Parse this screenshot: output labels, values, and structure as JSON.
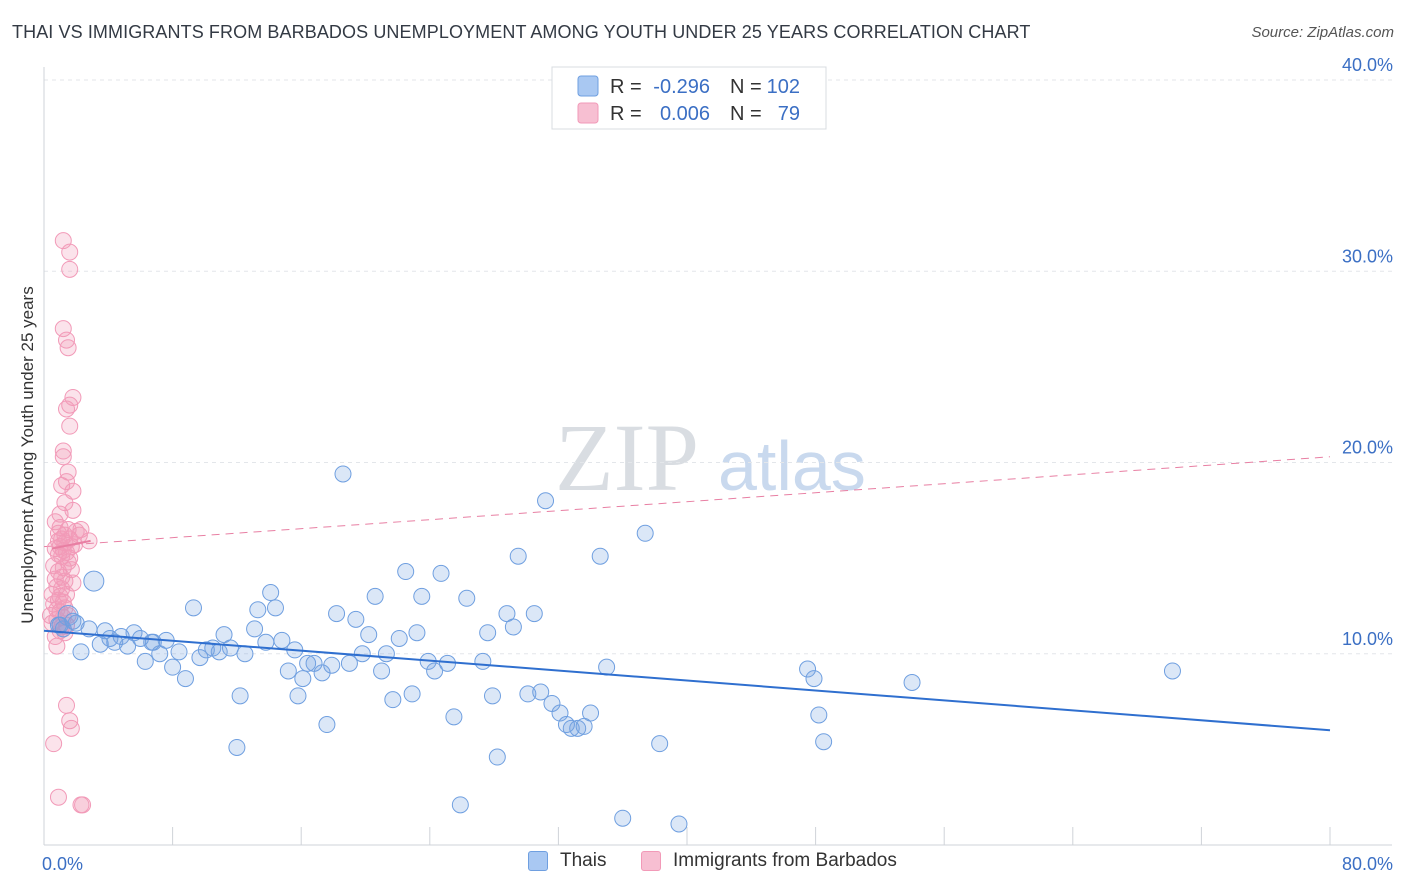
{
  "chart_data": {
    "type": "scatter",
    "title": "THAI VS IMMIGRANTS FROM BARBADOS UNEMPLOYMENT AMONG YOUTH UNDER 25 YEARS CORRELATION CHART",
    "source": "Source: ZipAtlas.com",
    "ylabel": "Unemployment Among Youth under 25 years",
    "xlabel": "",
    "xlim": [
      0,
      80
    ],
    "ylim": [
      0,
      40
    ],
    "x_tick_labels": [
      "0.0%",
      "80.0%"
    ],
    "y_ticks": [
      10,
      20,
      30,
      40
    ],
    "y_tick_labels": [
      "10.0%",
      "20.0%",
      "30.0%",
      "40.0%"
    ],
    "grid": true,
    "watermark": {
      "zip": "ZIP",
      "atlas": "atlas"
    },
    "legend_position": "top-center",
    "legend_r_label": "R =",
    "legend_n_label": "N =",
    "colors": {
      "thais": "#6f9fe0",
      "barbados": "#f29ab8",
      "thais_line": "#2f6fcf",
      "barbados_line": "#e87fa3"
    },
    "series": [
      {
        "name": "Thais",
        "r": "-0.296",
        "n": "102",
        "trend": {
          "x": [
            0,
            80
          ],
          "y": [
            11.2,
            6.0
          ],
          "style": "solid"
        },
        "points": [
          [
            0.9,
            11.5
          ],
          [
            1.2,
            11.3
          ],
          [
            1.5,
            12.0
          ],
          [
            1.8,
            11.7
          ],
          [
            2.3,
            10.1
          ],
          [
            2.8,
            11.3
          ],
          [
            3.1,
            13.8
          ],
          [
            3.5,
            10.5
          ],
          [
            3.8,
            11.2
          ],
          [
            4.1,
            10.8
          ],
          [
            4.4,
            10.6
          ],
          [
            4.8,
            10.9
          ],
          [
            5.2,
            10.4
          ],
          [
            5.6,
            11.1
          ],
          [
            6.0,
            10.8
          ],
          [
            6.3,
            9.6
          ],
          [
            6.7,
            10.6
          ],
          [
            7.2,
            10.0
          ],
          [
            7.6,
            10.7
          ],
          [
            8.0,
            9.3
          ],
          [
            8.4,
            10.1
          ],
          [
            8.8,
            8.7
          ],
          [
            9.3,
            12.4
          ],
          [
            9.7,
            9.8
          ],
          [
            10.1,
            10.2
          ],
          [
            10.5,
            10.3
          ],
          [
            10.9,
            10.1
          ],
          [
            11.2,
            11.0
          ],
          [
            11.6,
            10.3
          ],
          [
            12.0,
            5.1
          ],
          [
            12.2,
            7.8
          ],
          [
            12.5,
            10.0
          ],
          [
            13.1,
            11.3
          ],
          [
            13.3,
            12.3
          ],
          [
            13.8,
            10.6
          ],
          [
            14.1,
            13.2
          ],
          [
            14.4,
            12.4
          ],
          [
            14.8,
            10.7
          ],
          [
            15.2,
            9.1
          ],
          [
            15.6,
            10.2
          ],
          [
            15.8,
            7.8
          ],
          [
            16.1,
            8.7
          ],
          [
            16.4,
            9.5
          ],
          [
            16.8,
            9.5
          ],
          [
            17.3,
            9.0
          ],
          [
            17.6,
            6.3
          ],
          [
            17.9,
            9.4
          ],
          [
            18.2,
            12.1
          ],
          [
            18.6,
            19.4
          ],
          [
            19.0,
            9.5
          ],
          [
            19.4,
            11.8
          ],
          [
            19.8,
            10.0
          ],
          [
            20.2,
            11.0
          ],
          [
            20.6,
            13.0
          ],
          [
            21.0,
            9.1
          ],
          [
            21.3,
            10.0
          ],
          [
            21.7,
            7.6
          ],
          [
            22.1,
            10.8
          ],
          [
            22.5,
            14.3
          ],
          [
            22.9,
            7.9
          ],
          [
            23.2,
            11.1
          ],
          [
            23.5,
            13.0
          ],
          [
            23.9,
            9.6
          ],
          [
            24.3,
            9.1
          ],
          [
            24.7,
            14.2
          ],
          [
            25.1,
            9.5
          ],
          [
            25.5,
            6.7
          ],
          [
            25.9,
            2.1
          ],
          [
            26.3,
            12.9
          ],
          [
            27.3,
            9.6
          ],
          [
            27.6,
            11.1
          ],
          [
            27.9,
            7.8
          ],
          [
            28.2,
            4.6
          ],
          [
            28.8,
            12.1
          ],
          [
            29.2,
            11.4
          ],
          [
            29.5,
            15.1
          ],
          [
            30.1,
            7.9
          ],
          [
            30.5,
            12.1
          ],
          [
            30.9,
            8.0
          ],
          [
            31.2,
            18.0
          ],
          [
            31.6,
            7.4
          ],
          [
            32.1,
            6.9
          ],
          [
            32.5,
            6.3
          ],
          [
            32.8,
            6.1
          ],
          [
            33.2,
            6.1
          ],
          [
            33.6,
            6.2
          ],
          [
            34.0,
            6.9
          ],
          [
            34.6,
            15.1
          ],
          [
            35.0,
            9.3
          ],
          [
            36.0,
            1.4
          ],
          [
            37.4,
            16.3
          ],
          [
            38.3,
            5.3
          ],
          [
            39.5,
            1.1
          ],
          [
            47.5,
            9.2
          ],
          [
            47.9,
            8.7
          ],
          [
            48.2,
            6.8
          ],
          [
            48.5,
            5.4
          ],
          [
            54.0,
            8.5
          ],
          [
            70.2,
            9.1
          ],
          [
            1.0,
            11.5
          ],
          [
            2.0,
            11.6
          ],
          [
            6.8,
            10.6
          ]
        ]
      },
      {
        "name": "Immigrants from Barbados",
        "r": "0.006",
        "n": "79",
        "trend": {
          "x": [
            0,
            80
          ],
          "y": [
            15.6,
            20.3
          ],
          "style": "dashed"
        },
        "points": [
          [
            0.4,
            12.0
          ],
          [
            0.5,
            13.1
          ],
          [
            0.5,
            11.6
          ],
          [
            0.6,
            14.6
          ],
          [
            0.6,
            12.6
          ],
          [
            0.7,
            15.5
          ],
          [
            0.7,
            16.9
          ],
          [
            0.7,
            10.9
          ],
          [
            0.7,
            13.9
          ],
          [
            0.8,
            12.3
          ],
          [
            0.8,
            10.4
          ],
          [
            0.8,
            11.8
          ],
          [
            0.8,
            13.5
          ],
          [
            0.9,
            15.2
          ],
          [
            0.9,
            16.3
          ],
          [
            0.9,
            12.8
          ],
          [
            0.9,
            14.3
          ],
          [
            0.9,
            15.9
          ],
          [
            1.0,
            11.2
          ],
          [
            1.0,
            13.0
          ],
          [
            1.0,
            16.6
          ],
          [
            1.0,
            15.6
          ],
          [
            1.0,
            12.2
          ],
          [
            1.0,
            17.3
          ],
          [
            1.1,
            14.0
          ],
          [
            1.1,
            13.4
          ],
          [
            1.1,
            15.1
          ],
          [
            1.1,
            11.4
          ],
          [
            1.1,
            16.0
          ],
          [
            1.1,
            18.8
          ],
          [
            1.2,
            20.3
          ],
          [
            1.2,
            20.6
          ],
          [
            1.2,
            31.6
          ],
          [
            1.2,
            27.0
          ],
          [
            1.2,
            15.4
          ],
          [
            1.2,
            12.7
          ],
          [
            1.2,
            14.5
          ],
          [
            1.2,
            11.9
          ],
          [
            1.3,
            17.9
          ],
          [
            1.3,
            16.2
          ],
          [
            1.3,
            13.8
          ],
          [
            1.3,
            15.8
          ],
          [
            1.3,
            12.4
          ],
          [
            1.3,
            11.1
          ],
          [
            1.4,
            26.4
          ],
          [
            1.4,
            22.8
          ],
          [
            1.4,
            19.0
          ],
          [
            1.4,
            15.3
          ],
          [
            1.4,
            13.1
          ],
          [
            1.4,
            11.5
          ],
          [
            1.5,
            26.0
          ],
          [
            1.5,
            19.5
          ],
          [
            1.5,
            16.5
          ],
          [
            1.5,
            14.8
          ],
          [
            1.5,
            12.0
          ],
          [
            1.6,
            31.0
          ],
          [
            1.6,
            30.1
          ],
          [
            1.6,
            23.0
          ],
          [
            1.6,
            21.9
          ],
          [
            1.6,
            16.0
          ],
          [
            1.6,
            15.0
          ],
          [
            1.7,
            15.6
          ],
          [
            1.7,
            14.4
          ],
          [
            1.8,
            23.4
          ],
          [
            1.8,
            18.5
          ],
          [
            1.8,
            17.5
          ],
          [
            1.8,
            13.7
          ],
          [
            1.9,
            15.7
          ],
          [
            2.0,
            16.4
          ],
          [
            2.2,
            16.2
          ],
          [
            2.3,
            16.5
          ],
          [
            2.8,
            15.9
          ],
          [
            0.6,
            5.3
          ],
          [
            0.9,
            2.5
          ],
          [
            1.4,
            7.3
          ],
          [
            1.6,
            6.5
          ],
          [
            1.7,
            6.1
          ],
          [
            2.3,
            2.1
          ],
          [
            2.4,
            2.1
          ]
        ]
      }
    ]
  },
  "legend": {
    "items": [
      {
        "swatch_color": "#a9c8f2",
        "swatch_border": "#6f9fe0"
      },
      {
        "swatch_color": "#f7bfd2",
        "swatch_border": "#f29ab8"
      }
    ]
  }
}
